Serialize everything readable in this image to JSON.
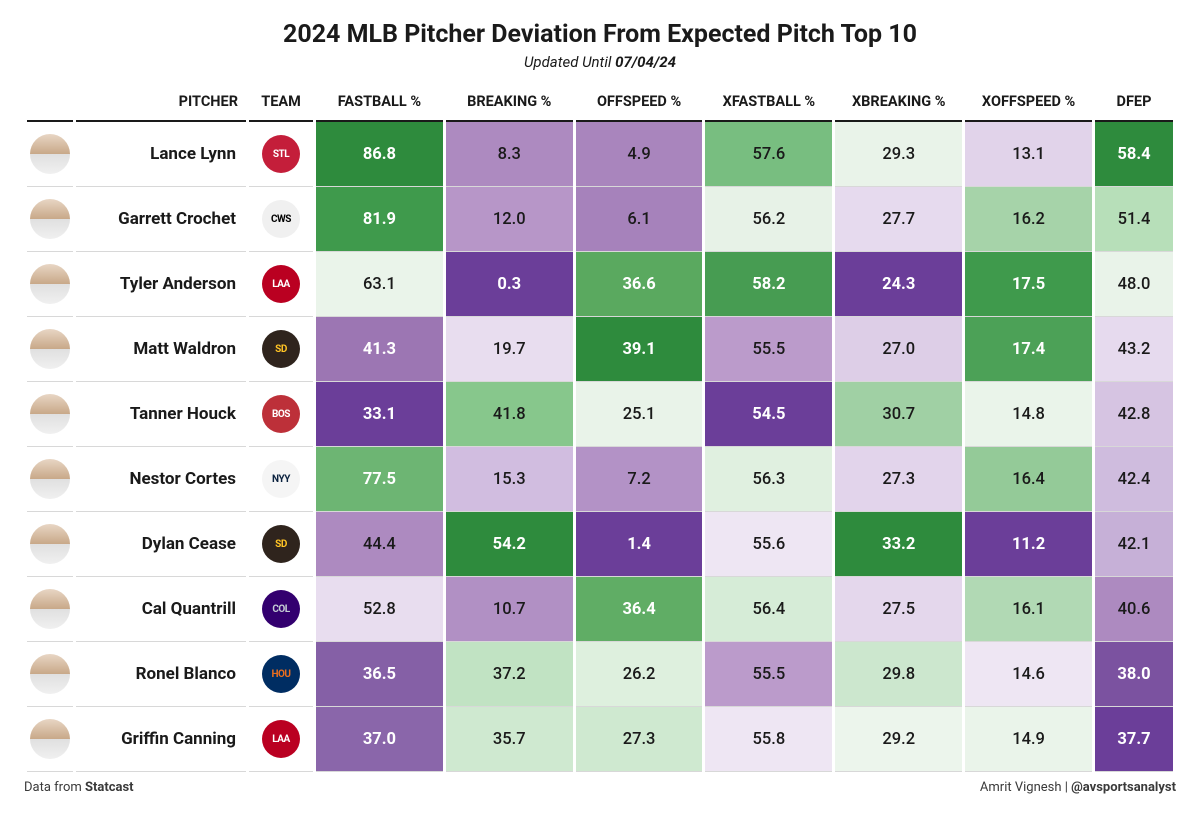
{
  "title": "2024 MLB Pitcher Deviation From Expected Pitch Top 10",
  "subtitle_prefix": "Updated Until ",
  "subtitle_date": "07/04/24",
  "footer_left_prefix": "Data from ",
  "footer_left_bold": "Statcast",
  "footer_right_author": "Amrit Vignesh | ",
  "footer_right_handle": "@avsportsanalyst",
  "columns": [
    "PITCHER",
    "TEAM",
    "FASTBALL %",
    "BREAKING %",
    "OFFSPEED %",
    "XFASTBALL %",
    "XBREAKING %",
    "XOFFSPEED %",
    "DFEP"
  ],
  "team_logo_colors": {
    "STL": {
      "bg": "#c41e3a",
      "fg": "#fff"
    },
    "CWS": {
      "bg": "#f0f0f0",
      "fg": "#000"
    },
    "LAA": {
      "bg": "#ba0021",
      "fg": "#fff"
    },
    "SD": {
      "bg": "#2f241d",
      "fg": "#ffc425"
    },
    "BOS": {
      "bg": "#bd3039",
      "fg": "#fff"
    },
    "NYY": {
      "bg": "#f5f5f5",
      "fg": "#0c2340"
    },
    "COL": {
      "bg": "#33006f",
      "fg": "#c4ced4"
    },
    "HOU": {
      "bg": "#002d62",
      "fg": "#eb6e1f"
    }
  },
  "rows": [
    {
      "name": "Lance Lynn",
      "team": "STL",
      "cells": [
        {
          "v": "86.8",
          "bg": "#2e8b3d",
          "wt": 1
        },
        {
          "v": "8.3",
          "bg": "#ad8ac0",
          "wt": 0
        },
        {
          "v": "4.9",
          "bg": "#a985bd",
          "wt": 0
        },
        {
          "v": "57.6",
          "bg": "#78be80",
          "wt": 0
        },
        {
          "v": "29.3",
          "bg": "#e9f3e9",
          "wt": 0
        },
        {
          "v": "13.1",
          "bg": "#e1d3ea",
          "wt": 0
        },
        {
          "v": "58.4",
          "bg": "#2e8b3d",
          "wt": 1
        }
      ]
    },
    {
      "name": "Garrett Crochet",
      "team": "CWS",
      "cells": [
        {
          "v": "81.9",
          "bg": "#3f9a4c",
          "wt": 1
        },
        {
          "v": "12.0",
          "bg": "#b796c8",
          "wt": 0
        },
        {
          "v": "6.1",
          "bg": "#a682bb",
          "wt": 0
        },
        {
          "v": "56.2",
          "bg": "#e7f2e7",
          "wt": 0
        },
        {
          "v": "27.7",
          "bg": "#e6daee",
          "wt": 0
        },
        {
          "v": "16.2",
          "bg": "#a6d3a9",
          "wt": 0
        },
        {
          "v": "51.4",
          "bg": "#b7dfb9",
          "wt": 0
        }
      ]
    },
    {
      "name": "Tyler Anderson",
      "team": "LAA",
      "cells": [
        {
          "v": "63.1",
          "bg": "#eaf4ea",
          "wt": 0
        },
        {
          "v": "0.3",
          "bg": "#6b3e99",
          "wt": 1
        },
        {
          "v": "36.6",
          "bg": "#5aa95f",
          "wt": 1
        },
        {
          "v": "58.2",
          "bg": "#479c52",
          "wt": 1
        },
        {
          "v": "24.3",
          "bg": "#6b3e99",
          "wt": 1
        },
        {
          "v": "17.5",
          "bg": "#3f9a4c",
          "wt": 1
        },
        {
          "v": "48.0",
          "bg": "#e9f3e9",
          "wt": 0
        }
      ]
    },
    {
      "name": "Matt Waldron",
      "team": "SD",
      "cells": [
        {
          "v": "41.3",
          "bg": "#9c76b3",
          "wt": 1
        },
        {
          "v": "19.7",
          "bg": "#e8ddef",
          "wt": 0
        },
        {
          "v": "39.1",
          "bg": "#2e8b3d",
          "wt": 1
        },
        {
          "v": "55.5",
          "bg": "#bb9bcb",
          "wt": 0
        },
        {
          "v": "27.0",
          "bg": "#ddcee7",
          "wt": 0
        },
        {
          "v": "17.4",
          "bg": "#4ca157",
          "wt": 1
        },
        {
          "v": "43.2",
          "bg": "#e6daee",
          "wt": 0
        }
      ]
    },
    {
      "name": "Tanner Houck",
      "team": "BOS",
      "cells": [
        {
          "v": "33.1",
          "bg": "#6b3e99",
          "wt": 1
        },
        {
          "v": "41.8",
          "bg": "#87c78c",
          "wt": 0
        },
        {
          "v": "25.1",
          "bg": "#e9f3e9",
          "wt": 0
        },
        {
          "v": "54.5",
          "bg": "#6b3e99",
          "wt": 1
        },
        {
          "v": "30.7",
          "bg": "#a0d0a4",
          "wt": 0
        },
        {
          "v": "14.8",
          "bg": "#eaf4ea",
          "wt": 0
        },
        {
          "v": "42.8",
          "bg": "#d6c4e2",
          "wt": 0
        }
      ]
    },
    {
      "name": "Nestor Cortes",
      "team": "NYY",
      "cells": [
        {
          "v": "77.5",
          "bg": "#6db573",
          "wt": 1
        },
        {
          "v": "15.3",
          "bg": "#d1bde0",
          "wt": 0
        },
        {
          "v": "7.2",
          "bg": "#b392c6",
          "wt": 0
        },
        {
          "v": "56.3",
          "bg": "#e0f0e0",
          "wt": 0
        },
        {
          "v": "27.3",
          "bg": "#e2d4eb",
          "wt": 0
        },
        {
          "v": "16.4",
          "bg": "#94ca98",
          "wt": 0
        },
        {
          "v": "42.4",
          "bg": "#cfbcde",
          "wt": 0
        }
      ]
    },
    {
      "name": "Dylan Cease",
      "team": "SD",
      "cells": [
        {
          "v": "44.4",
          "bg": "#ad8ac0",
          "wt": 0
        },
        {
          "v": "54.2",
          "bg": "#2e8b3d",
          "wt": 1
        },
        {
          "v": "1.4",
          "bg": "#6b3e99",
          "wt": 1
        },
        {
          "v": "55.6",
          "bg": "#eee6f3",
          "wt": 0
        },
        {
          "v": "33.2",
          "bg": "#2e8b3d",
          "wt": 1
        },
        {
          "v": "11.2",
          "bg": "#6b3e99",
          "wt": 1
        },
        {
          "v": "42.1",
          "bg": "#c6b0d7",
          "wt": 0
        }
      ]
    },
    {
      "name": "Cal Quantrill",
      "team": "COL",
      "cells": [
        {
          "v": "52.8",
          "bg": "#e8ddef",
          "wt": 0
        },
        {
          "v": "10.7",
          "bg": "#b190c4",
          "wt": 0
        },
        {
          "v": "36.4",
          "bg": "#60ad65",
          "wt": 1
        },
        {
          "v": "56.4",
          "bg": "#d6ecd7",
          "wt": 0
        },
        {
          "v": "27.5",
          "bg": "#e4d7ec",
          "wt": 0
        },
        {
          "v": "16.1",
          "bg": "#b1d9b4",
          "wt": 0
        },
        {
          "v": "40.6",
          "bg": "#ad8ac0",
          "wt": 0
        }
      ]
    },
    {
      "name": "Ronel Blanco",
      "team": "HOU",
      "cells": [
        {
          "v": "36.5",
          "bg": "#8560a6",
          "wt": 1
        },
        {
          "v": "37.2",
          "bg": "#c1e3c3",
          "wt": 0
        },
        {
          "v": "26.2",
          "bg": "#def0de",
          "wt": 0
        },
        {
          "v": "55.5",
          "bg": "#bb9bcb",
          "wt": 0
        },
        {
          "v": "29.8",
          "bg": "#cce7ce",
          "wt": 0
        },
        {
          "v": "14.6",
          "bg": "#eee6f3",
          "wt": 0
        },
        {
          "v": "38.0",
          "bg": "#7b52a0",
          "wt": 1
        }
      ]
    },
    {
      "name": "Griffin Canning",
      "team": "LAA",
      "cells": [
        {
          "v": "37.0",
          "bg": "#8a66aa",
          "wt": 1
        },
        {
          "v": "35.7",
          "bg": "#cfe9d0",
          "wt": 0
        },
        {
          "v": "27.3",
          "bg": "#cfe9d0",
          "wt": 0
        },
        {
          "v": "55.8",
          "bg": "#eee6f3",
          "wt": 0
        },
        {
          "v": "29.2",
          "bg": "#ecf5ec",
          "wt": 0
        },
        {
          "v": "14.9",
          "bg": "#eaf4ea",
          "wt": 0
        },
        {
          "v": "37.7",
          "bg": "#6b3e99",
          "wt": 1
        }
      ]
    }
  ]
}
